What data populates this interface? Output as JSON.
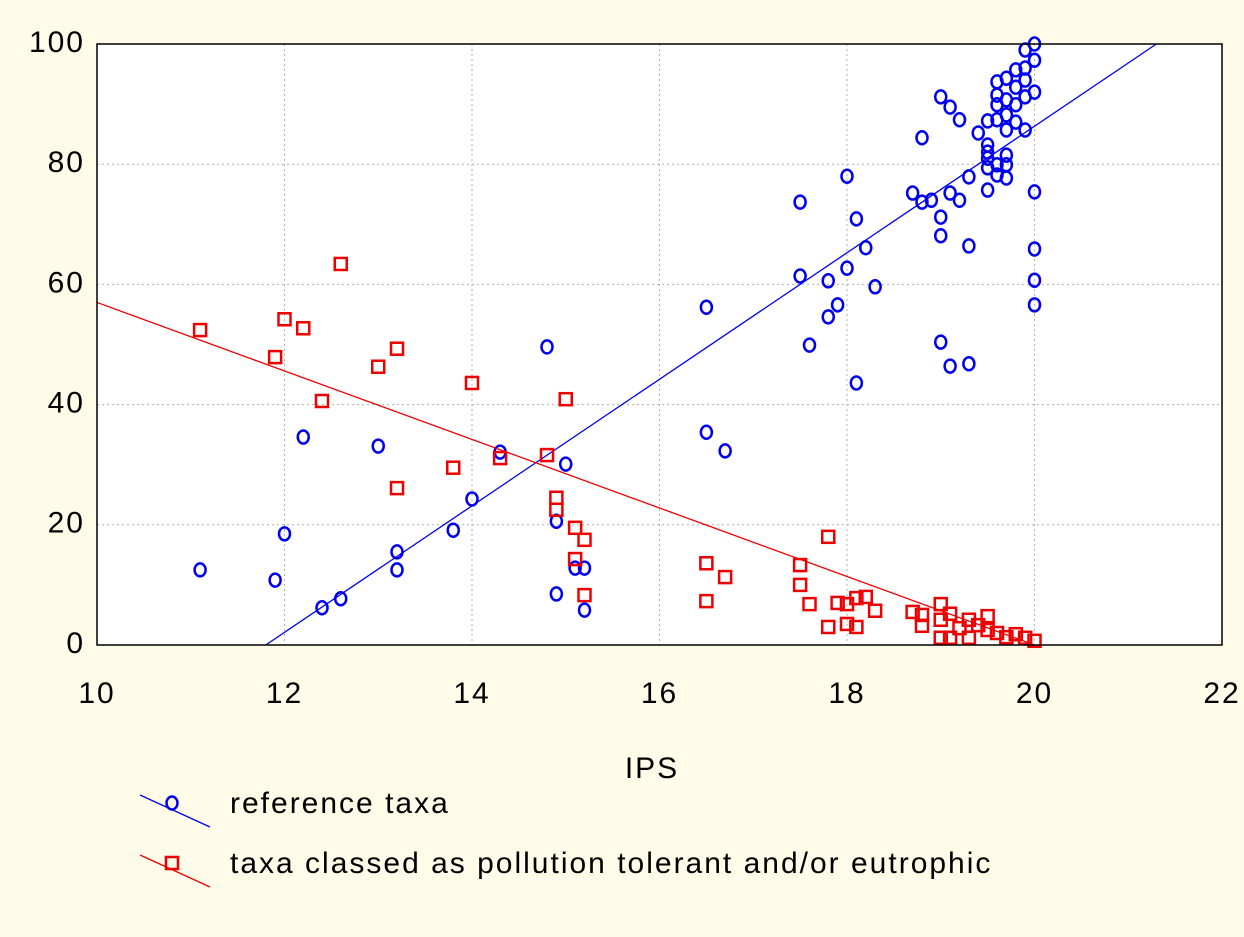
{
  "chart_data": {
    "type": "scatter",
    "x_label": "IPS",
    "xlim": [
      10,
      22
    ],
    "xticks": [
      10,
      12,
      14,
      16,
      18,
      20,
      22
    ],
    "ylim": [
      0,
      100
    ],
    "yticks": [
      0,
      20,
      40,
      60,
      80,
      100
    ],
    "grid": true,
    "series": [
      {
        "name": "reference taxa",
        "color": "#0000ee",
        "marker": "circle",
        "x": [
          11.1,
          11.9,
          12.0,
          12.2,
          12.4,
          12.6,
          13.0,
          13.2,
          13.2,
          13.8,
          14.0,
          14.3,
          14.8,
          14.9,
          14.9,
          15.0,
          15.1,
          15.2,
          15.2,
          16.5,
          16.5,
          16.7,
          17.5,
          17.5,
          17.6,
          17.8,
          17.8,
          17.9,
          18.0,
          18.0,
          18.1,
          18.1,
          18.2,
          18.3,
          18.7,
          18.8,
          18.8,
          18.9,
          19.0,
          19.0,
          19.0,
          19.0,
          19.1,
          19.1,
          19.1,
          19.2,
          19.2,
          19.3,
          19.3,
          19.3,
          19.4,
          19.5,
          19.5,
          19.5,
          19.5,
          19.5,
          19.5,
          19.6,
          19.6,
          19.6,
          19.6,
          19.6,
          19.6,
          19.7,
          19.7,
          19.7,
          19.7,
          19.7,
          19.7,
          19.7,
          19.8,
          19.8,
          19.8,
          19.8,
          19.9,
          19.9,
          19.9,
          19.9,
          19.9,
          20.0,
          20.0,
          20.0,
          20.0,
          20.0,
          20.0,
          20.0
        ],
        "values": [
          12.5,
          10.8,
          18.5,
          34.6,
          6.2,
          7.7,
          33.1,
          15.5,
          12.5,
          19.1,
          24.3,
          32.1,
          49.6,
          20.6,
          8.5,
          30.1,
          12.8,
          12.8,
          5.8,
          56.2,
          35.4,
          32.3,
          73.7,
          61.4,
          49.9,
          54.6,
          60.6,
          56.6,
          62.7,
          78.0,
          70.9,
          43.6,
          66.1,
          59.6,
          75.2,
          84.4,
          73.7,
          74.0,
          91.2,
          71.2,
          68.1,
          50.4,
          89.5,
          75.2,
          46.4,
          87.4,
          74.0,
          77.9,
          66.4,
          46.8,
          85.2,
          87.2,
          83.2,
          82.0,
          81.0,
          79.4,
          75.7,
          93.7,
          91.5,
          89.9,
          87.4,
          79.9,
          78.2,
          94.3,
          90.7,
          88.2,
          85.7,
          81.5,
          79.9,
          77.7,
          95.7,
          92.8,
          89.9,
          87.0,
          99.0,
          96.0,
          94.0,
          91.2,
          85.7,
          100,
          97.3,
          92.0,
          75.4,
          65.9,
          60.7,
          56.6
        ],
        "fit": {
          "x": [
            11.8,
            21.3
          ],
          "y": [
            0,
            100
          ]
        }
      },
      {
        "name": "taxa classed as pollution tolerant and/or eutrophic",
        "color": "#ee0000",
        "marker": "square",
        "x": [
          11.1,
          11.9,
          12.0,
          12.2,
          12.4,
          12.6,
          13.0,
          13.2,
          13.2,
          13.8,
          14.0,
          14.3,
          14.8,
          14.9,
          14.9,
          15.0,
          15.1,
          15.1,
          15.2,
          15.2,
          16.5,
          16.5,
          16.7,
          17.5,
          17.5,
          17.6,
          17.8,
          17.8,
          17.9,
          18.0,
          18.0,
          18.1,
          18.1,
          18.2,
          18.3,
          18.7,
          18.8,
          18.8,
          19.0,
          19.0,
          19.0,
          19.1,
          19.1,
          19.2,
          19.3,
          19.3,
          19.4,
          19.5,
          19.5,
          19.6,
          19.7,
          19.8,
          19.9,
          20.0
        ],
        "values": [
          52.4,
          47.9,
          54.2,
          52.7,
          40.6,
          63.4,
          46.3,
          49.3,
          26.1,
          29.5,
          43.6,
          31.1,
          31.6,
          24.5,
          22.5,
          40.9,
          19.5,
          14.3,
          17.5,
          8.3,
          13.6,
          7.3,
          11.3,
          13.3,
          10.0,
          6.8,
          18.0,
          3.0,
          7.0,
          3.5,
          6.8,
          7.8,
          3.0,
          8.0,
          5.7,
          5.5,
          5.0,
          3.2,
          6.8,
          4.2,
          1.2,
          5.2,
          1.2,
          2.8,
          4.2,
          1.2,
          3.3,
          4.8,
          2.5,
          2.0,
          1.3,
          1.8,
          1.2,
          0.7
        ],
        "fit": {
          "x": [
            10,
            20
          ],
          "y": [
            57,
            0
          ]
        }
      }
    ]
  }
}
